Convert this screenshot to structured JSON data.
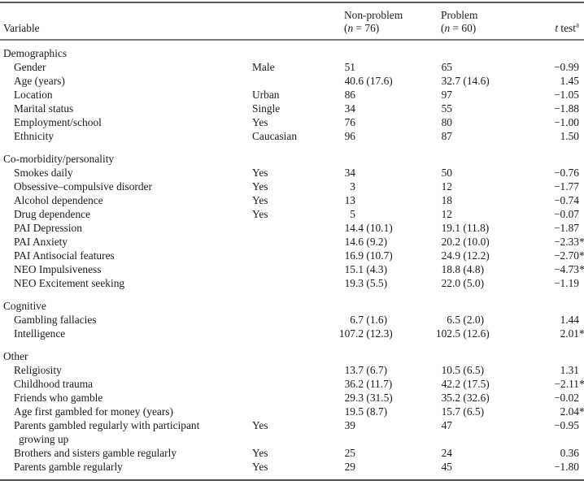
{
  "colors": {
    "text": "#1b1b1b",
    "rule_heavy": "#5a5a5a",
    "rule_light": "#7c7c7c",
    "background": "#ffffff"
  },
  "header": {
    "variable_label": "Variable",
    "groups": [
      {
        "name": "Non-problem",
        "n_open": "(",
        "n_var": "n",
        "n_rest": " = 76)"
      },
      {
        "name": "Problem",
        "n_open": "(",
        "n_var": "n",
        "n_rest": " = 60)"
      }
    ],
    "t_var": "t",
    "t_rest": " test",
    "t_sup": "a"
  },
  "rows": [
    {
      "type": "section",
      "label": "Demographics"
    },
    {
      "type": "data",
      "label": "Gender",
      "category": "Male",
      "nonproblem": "51",
      "problem": "65",
      "t": "−0.99"
    },
    {
      "type": "data",
      "label": "Age (years)",
      "category": "",
      "nonproblem": "40.6 (17.6)",
      "problem": "32.7 (14.6)",
      "t": "1.45"
    },
    {
      "type": "data",
      "label": "Location",
      "category": "Urban",
      "nonproblem": "86",
      "problem": "97",
      "t": "−1.05"
    },
    {
      "type": "data",
      "label": "Marital status",
      "category": "Single",
      "nonproblem": "34",
      "problem": "55",
      "t": "−1.88"
    },
    {
      "type": "data",
      "label": "Employment/school",
      "category": "Yes",
      "nonproblem": "76",
      "problem": "80",
      "t": "−1.00"
    },
    {
      "type": "data",
      "label": "Ethnicity",
      "category": "Caucasian",
      "nonproblem": "96",
      "problem": "87",
      "t": "1.50"
    },
    {
      "type": "section",
      "label": "Co-morbidity/personality"
    },
    {
      "type": "data",
      "label": "Smokes daily",
      "category": "Yes",
      "nonproblem": "34",
      "problem": "50",
      "t": "−0.76"
    },
    {
      "type": "data",
      "label": "Obsessive–compulsive disorder",
      "category": "Yes",
      "nonproblem": "3",
      "problem": "12",
      "t": "−1.77"
    },
    {
      "type": "data",
      "label": "Alcohol dependence",
      "category": "Yes",
      "nonproblem": "13",
      "problem": "18",
      "t": "−0.74"
    },
    {
      "type": "data",
      "label": "Drug dependence",
      "category": "Yes",
      "nonproblem": "5",
      "problem": "12",
      "t": "−0.07"
    },
    {
      "type": "data",
      "label": "PAI Depression",
      "category": "",
      "nonproblem": "14.4 (10.1)",
      "problem": "19.1 (11.8)",
      "t": "−1.87"
    },
    {
      "type": "data",
      "label": "PAI Anxiety",
      "category": "",
      "nonproblem": "14.6 (9.2)",
      "problem": "20.2 (10.0)",
      "t": "−2.33*"
    },
    {
      "type": "data",
      "label": "PAI Antisocial features",
      "category": "",
      "nonproblem": "16.9 (10.7)",
      "problem": "24.9 (12.2)",
      "t": "−2.70*"
    },
    {
      "type": "data",
      "label": "NEO Impulsiveness",
      "category": "",
      "nonproblem": "15.1 (4.3)",
      "problem": "18.8 (4.8)",
      "t": "−4.73*"
    },
    {
      "type": "data",
      "label": "NEO Excitement seeking",
      "category": "",
      "nonproblem": "19.3 (5.5)",
      "problem": "22.0 (5.0)",
      "t": "−1.19"
    },
    {
      "type": "section",
      "label": "Cognitive"
    },
    {
      "type": "data",
      "label": "Gambling fallacies",
      "category": "",
      "nonproblem": "6.7 (1.6)",
      "problem": "6.5 (2.0)",
      "t": "1.44"
    },
    {
      "type": "data",
      "label": "Intelligence",
      "category": "",
      "nonproblem": "107.2 (12.3)",
      "problem": "102.5 (12.6)",
      "t": "2.01*"
    },
    {
      "type": "section",
      "label": "Other"
    },
    {
      "type": "data",
      "label": "Religiosity",
      "category": "",
      "nonproblem": "13.7 (6.7)",
      "problem": "10.5 (6.5)",
      "t": "1.31"
    },
    {
      "type": "data",
      "label": "Childhood trauma",
      "category": "",
      "nonproblem": "36.2 (11.7)",
      "problem": "42.2 (17.5)",
      "t": "−2.11*"
    },
    {
      "type": "data",
      "label": "Friends who gamble",
      "category": "",
      "nonproblem": "29.3 (31.5)",
      "problem": "35.2 (32.6)",
      "t": "−0.02"
    },
    {
      "type": "data",
      "label": "Age first gambled for money (years)",
      "category": "",
      "nonproblem": "19.5 (8.7)",
      "problem": "15.7 (6.5)",
      "t": "2.04*"
    },
    {
      "type": "data",
      "label": "Parents gambled regularly with participant",
      "label2": "growing up",
      "category": "Yes",
      "nonproblem": "39",
      "problem": "47",
      "t": "−0.95"
    },
    {
      "type": "data",
      "label": "Brothers and sisters gamble regularly",
      "category": "Yes",
      "nonproblem": "25",
      "problem": "24",
      "t": "0.36"
    },
    {
      "type": "data",
      "label": "Parents gamble regularly",
      "category": "Yes",
      "nonproblem": "29",
      "problem": "45",
      "t": "−1.80"
    }
  ]
}
